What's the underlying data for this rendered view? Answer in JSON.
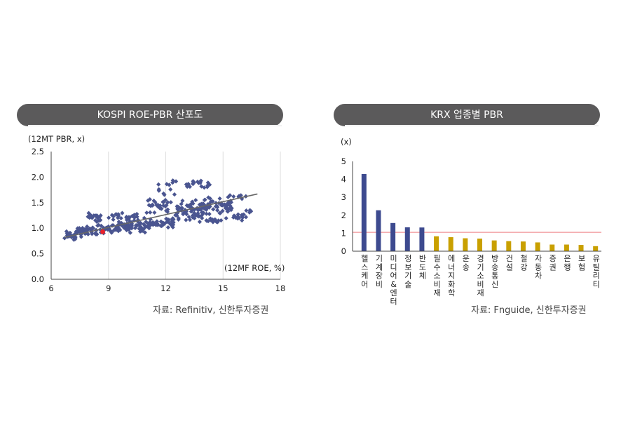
{
  "left": {
    "title": "KOSPI ROE-PBR 산포도",
    "source": "자료: Refinitiv, 신한투자증권"
  },
  "right": {
    "title": "KRX 업종별 PBR",
    "source": "자료: Fnguide, 신한투자증권"
  },
  "colors": {
    "title_bar": "#5b5a5b",
    "scatter_point": "#4a5590",
    "highlight_point": "#e8202a",
    "trend_line": "#666666",
    "bar_blue": "#3d4a8f",
    "bar_gold": "#c9a000",
    "reference_line": "#f3a3a6"
  },
  "chart_data": [
    {
      "type": "scatter",
      "title": "",
      "xlabel": "(12MF ROE, %)",
      "ylabel": "(12MT PBR, x)",
      "xlim": [
        6,
        18
      ],
      "ylim": [
        0.0,
        2.5
      ],
      "xticks": [
        "6",
        "9",
        "12",
        "15",
        "18"
      ],
      "yticks": [
        "0.0",
        "0.5",
        "1.0",
        "1.5",
        "2.0",
        "2.5"
      ],
      "grid": "vertical",
      "trend_line": [
        [
          6.7,
          0.82
        ],
        [
          16.8,
          1.67
        ]
      ],
      "highlight": {
        "x": 8.7,
        "y": 0.93
      },
      "clusters": [
        {
          "x_range": [
            6.7,
            7.3
          ],
          "y_center": 0.86,
          "spread": 0.08,
          "count": 28
        },
        {
          "x_range": [
            7.3,
            8.0
          ],
          "y_center": 0.93,
          "spread": 0.08,
          "count": 32
        },
        {
          "x_range": [
            7.7,
            8.6
          ],
          "y_center": 1.22,
          "spread": 0.07,
          "count": 18
        },
        {
          "x_range": [
            8.0,
            9.5
          ],
          "y_center": 0.98,
          "spread": 0.08,
          "count": 45
        },
        {
          "x_range": [
            9.5,
            11.0
          ],
          "y_center": 1.05,
          "spread": 0.1,
          "count": 60
        },
        {
          "x_range": [
            9.0,
            10.5
          ],
          "y_center": 1.22,
          "spread": 0.05,
          "count": 22
        },
        {
          "x_range": [
            11.0,
            12.5
          ],
          "y_center": 1.1,
          "spread": 0.08,
          "count": 45
        },
        {
          "x_range": [
            11.0,
            12.5
          ],
          "y_center": 1.45,
          "spread": 0.1,
          "count": 28
        },
        {
          "x_range": [
            11.6,
            12.6
          ],
          "y_center": 1.78,
          "spread": 0.12,
          "count": 12
        },
        {
          "x_range": [
            12.5,
            14.0
          ],
          "y_center": 1.35,
          "spread": 0.15,
          "count": 70
        },
        {
          "x_range": [
            13.0,
            14.5
          ],
          "y_center": 1.85,
          "spread": 0.06,
          "count": 20
        },
        {
          "x_range": [
            14.0,
            15.5
          ],
          "y_center": 1.45,
          "spread": 0.12,
          "count": 55
        },
        {
          "x_range": [
            14.0,
            15.2
          ],
          "y_center": 1.15,
          "spread": 0.04,
          "count": 14
        },
        {
          "x_range": [
            15.5,
            16.2
          ],
          "y_center": 1.22,
          "spread": 0.05,
          "count": 14
        },
        {
          "x_range": [
            15.0,
            16.2
          ],
          "y_center": 1.6,
          "spread": 0.05,
          "count": 8
        },
        {
          "x_range": [
            16.2,
            16.9
          ],
          "y_center": 1.33,
          "spread": 0.02,
          "count": 5
        }
      ]
    },
    {
      "type": "bar",
      "title": "",
      "ylabel": "(x)",
      "ylim": [
        0,
        5
      ],
      "yticks": [
        "0",
        "1",
        "2",
        "3",
        "4",
        "5"
      ],
      "reference_line": 1.05,
      "categories": [
        "헬스케어",
        "기계장비",
        "미디어&엔터",
        "정보기술",
        "반도체",
        "필수소비재",
        "에너지화학",
        "운송",
        "경기소비재",
        "방송통신",
        "건설",
        "철강",
        "자동차",
        "증권",
        "은행",
        "보험",
        "유틸리티"
      ],
      "values": [
        4.3,
        2.28,
        1.57,
        1.33,
        1.32,
        0.83,
        0.78,
        0.72,
        0.7,
        0.6,
        0.56,
        0.54,
        0.49,
        0.37,
        0.37,
        0.35,
        0.28
      ],
      "bar_color": [
        "blue",
        "blue",
        "blue",
        "blue",
        "blue",
        "gold",
        "gold",
        "gold",
        "gold",
        "gold",
        "gold",
        "gold",
        "gold",
        "gold",
        "gold",
        "gold",
        "gold"
      ]
    }
  ]
}
